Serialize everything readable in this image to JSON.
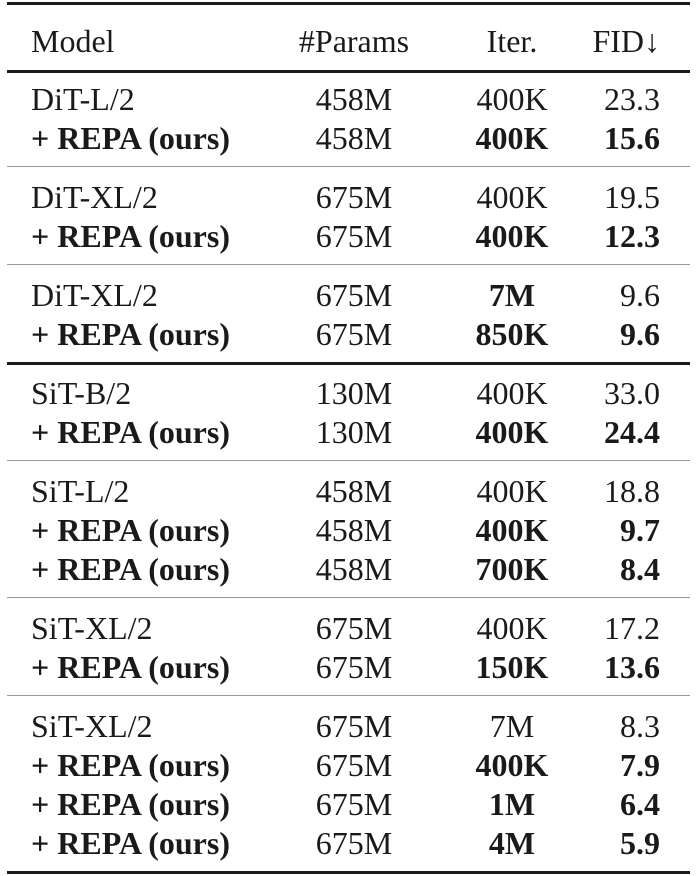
{
  "table": {
    "headers": {
      "model": "Model",
      "params": "#Params",
      "iter": "Iter.",
      "fid": "FID↓"
    },
    "groups": [
      {
        "rows": [
          {
            "model": "DiT-L/2",
            "params": "458M",
            "iter": "400K",
            "fid": "23.3",
            "ours": false,
            "iter_bold": false,
            "fid_bold": false
          },
          {
            "model": "+ REPA (ours)",
            "params": "458M",
            "iter": "400K",
            "fid": "15.6",
            "ours": true,
            "iter_bold": true,
            "fid_bold": true
          }
        ]
      },
      {
        "rows": [
          {
            "model": "DiT-XL/2",
            "params": "675M",
            "iter": "400K",
            "fid": "19.5",
            "ours": false,
            "iter_bold": false,
            "fid_bold": false
          },
          {
            "model": "+ REPA (ours)",
            "params": "675M",
            "iter": "400K",
            "fid": "12.3",
            "ours": true,
            "iter_bold": true,
            "fid_bold": true
          }
        ]
      },
      {
        "rows": [
          {
            "model": "DiT-XL/2",
            "params": "675M",
            "iter": "7M",
            "fid": "9.6",
            "ours": false,
            "iter_bold": true,
            "fid_bold": false
          },
          {
            "model": "+ REPA (ours)",
            "params": "675M",
            "iter": "850K",
            "fid": "9.6",
            "ours": true,
            "iter_bold": true,
            "fid_bold": true
          }
        ]
      },
      {
        "rows": [
          {
            "model": "SiT-B/2",
            "params": "130M",
            "iter": "400K",
            "fid": "33.0",
            "ours": false,
            "iter_bold": false,
            "fid_bold": false
          },
          {
            "model": "+ REPA (ours)",
            "params": "130M",
            "iter": "400K",
            "fid": "24.4",
            "ours": true,
            "iter_bold": true,
            "fid_bold": true
          }
        ]
      },
      {
        "rows": [
          {
            "model": "SiT-L/2",
            "params": "458M",
            "iter": "400K",
            "fid": "18.8",
            "ours": false,
            "iter_bold": false,
            "fid_bold": false
          },
          {
            "model": "+ REPA (ours)",
            "params": "458M",
            "iter": "400K",
            "fid": "9.7",
            "ours": true,
            "iter_bold": true,
            "fid_bold": true
          },
          {
            "model": "+ REPA (ours)",
            "params": "458M",
            "iter": "700K",
            "fid": "8.4",
            "ours": true,
            "iter_bold": true,
            "fid_bold": true
          }
        ]
      },
      {
        "rows": [
          {
            "model": "SiT-XL/2",
            "params": "675M",
            "iter": "400K",
            "fid": "17.2",
            "ours": false,
            "iter_bold": false,
            "fid_bold": false
          },
          {
            "model": "+ REPA (ours)",
            "params": "675M",
            "iter": "150K",
            "fid": "13.6",
            "ours": true,
            "iter_bold": true,
            "fid_bold": true
          }
        ]
      },
      {
        "rows": [
          {
            "model": "SiT-XL/2",
            "params": "675M",
            "iter": "7M",
            "fid": "8.3",
            "ours": false,
            "iter_bold": false,
            "fid_bold": false
          },
          {
            "model": "+ REPA (ours)",
            "params": "675M",
            "iter": "400K",
            "fid": "7.9",
            "ours": true,
            "iter_bold": true,
            "fid_bold": true
          },
          {
            "model": "+ REPA (ours)",
            "params": "675M",
            "iter": "1M",
            "fid": "6.4",
            "ours": true,
            "iter_bold": true,
            "fid_bold": true
          },
          {
            "model": "+ REPA (ours)",
            "params": "675M",
            "iter": "4M",
            "fid": "5.9",
            "ours": true,
            "iter_bold": true,
            "fid_bold": true
          }
        ]
      }
    ]
  }
}
